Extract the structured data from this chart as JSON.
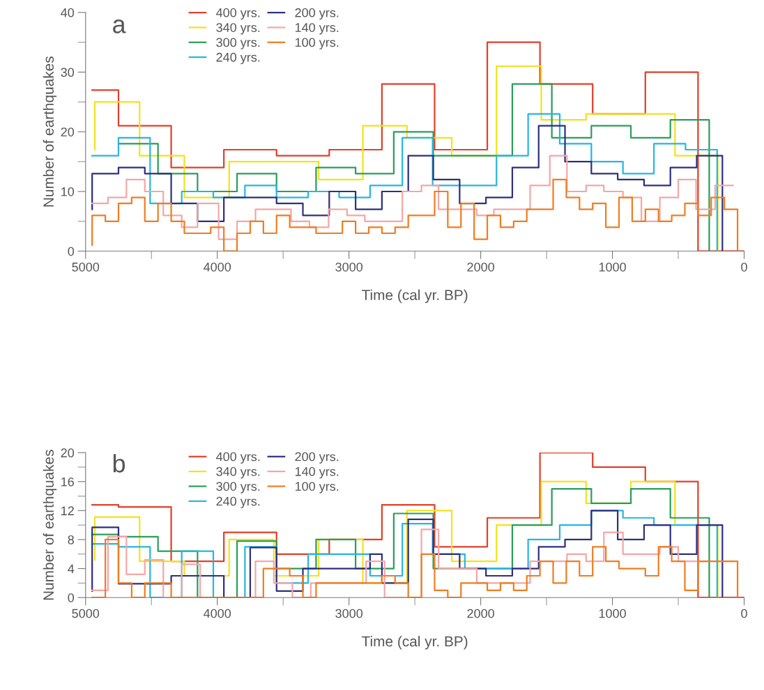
{
  "chart_data": [
    {
      "type": "step",
      "xlabel": "Time (cal yr. BP)",
      "ylabel": "Number of earthquakes",
      "annotations": [
        "a"
      ],
      "legend": "top",
      "xlim": [
        5000,
        0
      ],
      "xticks": [
        5000,
        {
          "value": 4500,
          "label": null
        },
        4000,
        {
          "value": 3500,
          "label": null
        },
        3000,
        {
          "value": 2500,
          "label": null
        },
        2000,
        {
          "value": 1500,
          "label": null
        },
        1000,
        {
          "value": 500,
          "label": null
        },
        0
      ],
      "ylim": [
        0,
        40
      ],
      "yticks": [
        0,
        {
          "value": 5,
          "label": null
        },
        10,
        {
          "value": 15,
          "label": null
        },
        20,
        {
          "value": 25,
          "label": null
        },
        30,
        {
          "value": 35,
          "label": null
        },
        40
      ],
      "series": [
        {
          "name": "400 yrs.",
          "color": "#e0402a",
          "x": [
            4950,
            4750,
            4350,
            3950,
            3550,
            3150,
            2750,
            2350,
            1950,
            1550,
            1150,
            750,
            350,
            0
          ],
          "values": [
            27,
            21,
            14,
            17,
            16,
            17,
            28,
            17,
            35,
            28,
            23,
            30,
            0,
            0
          ]
        },
        {
          "name": "340 yrs.",
          "color": "#f2e21a",
          "x": [
            4930,
            4930,
            4590,
            4250,
            3910,
            3230,
            2895,
            2560,
            2220,
            1880,
            1540,
            1200,
            525,
            200
          ],
          "values": [
            17,
            25,
            16,
            9,
            15,
            12,
            21,
            19,
            16,
            31,
            22,
            23,
            16,
            0
          ]
        },
        {
          "name": "300 yrs.",
          "color": "#2a9d5c",
          "x": [
            4750,
            4450,
            4150,
            3850,
            3550,
            3250,
            2950,
            2660,
            2360,
            1760,
            1460,
            1160,
            860,
            560,
            265
          ],
          "values": [
            18,
            13,
            10,
            13,
            10,
            14,
            13,
            20,
            16,
            28,
            19,
            21,
            19,
            22,
            0
          ]
        },
        {
          "name": "240 yrs.",
          "color": "#27b5e0",
          "x": [
            4950,
            4750,
            4510,
            4270,
            4030,
            3790,
            3550,
            3310,
            3075,
            2840,
            2595,
            2365,
            1880,
            1640,
            1400,
            1160,
            920,
            685,
            445,
            205
          ],
          "values": [
            16,
            19,
            8,
            10,
            9,
            11,
            9,
            10,
            9,
            11,
            19,
            11,
            16,
            23,
            18,
            15,
            13,
            18,
            17,
            0
          ]
        },
        {
          "name": "200 yrs.",
          "color": "#2e2f7e",
          "x": [
            4950,
            4950,
            4750,
            4550,
            4350,
            4150,
            3950,
            3550,
            3350,
            3150,
            2950,
            2750,
            2550,
            2360,
            2160,
            1960,
            1760,
            1560,
            1360,
            1160,
            960,
            760,
            560,
            360,
            165
          ],
          "values": [
            7,
            13,
            14,
            13,
            8,
            5,
            9,
            8,
            6,
            10,
            7,
            10,
            16,
            12,
            8,
            9,
            14,
            21,
            15,
            13,
            12,
            11,
            14,
            16,
            0
          ]
        },
        {
          "name": "140 yrs.",
          "color": "#f4a6a8",
          "x": [
            4950,
            4830,
            4690,
            4550,
            4410,
            4270,
            4150,
            3990,
            3850,
            3710,
            3440,
            3300,
            3155,
            3015,
            2880,
            2595,
            2450,
            2320,
            2030,
            1900,
            1625,
            1475,
            1345,
            1200,
            1065,
            920,
            780,
            640,
            500,
            365,
            220,
            85
          ],
          "values": [
            8,
            9,
            12,
            10,
            6,
            4,
            8,
            2,
            5,
            7,
            5,
            4,
            7,
            6,
            5,
            10,
            11,
            7,
            6,
            7,
            11,
            16,
            10,
            11,
            10,
            9,
            5,
            9,
            12,
            7,
            11,
            11
          ]
        },
        {
          "name": "100 yrs.",
          "color": "#ee7d22",
          "x": [
            4950,
            4950,
            4850,
            4750,
            4650,
            4550,
            4450,
            4350,
            4250,
            4150,
            4050,
            3950,
            3850,
            3750,
            3650,
            3550,
            3450,
            3350,
            3250,
            3150,
            3050,
            2950,
            2850,
            2750,
            2650,
            2550,
            2450,
            2350,
            2250,
            2150,
            2050,
            1950,
            1850,
            1750,
            1650,
            1550,
            1450,
            1350,
            1250,
            1150,
            1050,
            950,
            850,
            750,
            650,
            550,
            450,
            350,
            250,
            150,
            50
          ],
          "values": [
            1,
            6,
            5,
            8,
            9,
            5,
            8,
            5,
            3,
            3,
            4,
            0,
            3,
            5,
            3,
            6,
            4,
            4,
            3,
            3,
            5,
            3,
            4,
            3,
            4,
            6,
            6,
            10,
            4,
            8,
            2,
            6,
            4,
            5,
            7,
            7,
            12,
            9,
            7,
            8,
            4,
            9,
            5,
            7,
            5,
            6,
            8,
            6,
            9,
            7,
            0
          ]
        }
      ]
    },
    {
      "type": "step",
      "xlabel": "Time (cal yr. BP)",
      "ylabel": "Number of earthquakes",
      "annotations": [
        "b"
      ],
      "legend": "top",
      "xlim": [
        5000,
        0
      ],
      "xticks": [
        5000,
        {
          "value": 4500,
          "label": null
        },
        4000,
        {
          "value": 3500,
          "label": null
        },
        3000,
        {
          "value": 2500,
          "label": null
        },
        2000,
        {
          "value": 1500,
          "label": null
        },
        1000,
        {
          "value": 500,
          "label": null
        },
        0
      ],
      "ylim": [
        0,
        20
      ],
      "yticks": [
        0,
        {
          "value": 2,
          "label": null
        },
        4,
        {
          "value": 6,
          "label": null
        },
        8,
        {
          "value": 10,
          "label": null
        },
        12,
        {
          "value": 14,
          "label": null
        },
        16,
        {
          "value": 18,
          "label": null
        },
        20
      ],
      "series": [
        {
          "name": "400 yrs.",
          "color": "#e0402a",
          "x": [
            4950,
            4750,
            4350,
            3950,
            3550,
            3150,
            2750,
            2350,
            1950,
            1550,
            1150,
            750,
            350,
            0
          ],
          "values": [
            12.8,
            12.5,
            5,
            9,
            6,
            8,
            12.8,
            7,
            11,
            20,
            18,
            16,
            0,
            0
          ]
        },
        {
          "name": "340 yrs.",
          "color": "#f2e21a",
          "x": [
            4930,
            4930,
            4590,
            4250,
            3910,
            3570,
            3230,
            2895,
            2560,
            2220,
            1880,
            1540,
            1200,
            860,
            525,
            200
          ],
          "values": [
            5.2,
            11.1,
            5,
            3,
            8,
            3,
            8,
            2,
            12,
            5,
            10,
            16,
            13,
            16,
            10,
            0
          ]
        },
        {
          "name": "300 yrs.",
          "color": "#2a9d5c",
          "x": [
            4950,
            4750,
            4450,
            4150,
            3850,
            3550,
            3250,
            2950,
            2660,
            2360,
            1760,
            1460,
            1160,
            860,
            560,
            265
          ],
          "values": [
            8.7,
            8.4,
            6.4,
            0,
            7.8,
            4,
            8,
            4,
            11.6,
            4,
            10,
            15,
            13,
            15,
            11,
            0
          ]
        },
        {
          "name": "240 yrs.",
          "color": "#27b5e0",
          "x": [
            4950,
            4750,
            4510,
            4270,
            4030,
            3790,
            3550,
            3310,
            2840,
            2595,
            2365,
            2120,
            1640,
            1400,
            1160,
            920,
            685,
            205
          ],
          "values": [
            7.4,
            7,
            0,
            6.4,
            0,
            7,
            2,
            6,
            3,
            10.2,
            6,
            4,
            8,
            10,
            12,
            11,
            10,
            0
          ]
        },
        {
          "name": "200 yrs.",
          "color": "#2e2f7e",
          "x": [
            4950,
            4950,
            4750,
            4350,
            3950,
            3750,
            3550,
            3350,
            2840,
            2750,
            2550,
            2360,
            2160,
            1960,
            1760,
            1560,
            1360,
            1160,
            960,
            760,
            560,
            360,
            165
          ],
          "values": [
            0.9,
            9.7,
            1.9,
            3,
            0,
            6.9,
            0.9,
            4,
            6,
            2,
            10.8,
            6,
            4,
            3,
            4,
            7,
            8,
            12,
            8,
            10,
            6,
            10,
            0
          ]
        },
        {
          "name": "140 yrs.",
          "color": "#f4a6a8",
          "x": [
            4950,
            4830,
            4690,
            4550,
            4410,
            4270,
            4130,
            3710,
            3570,
            3430,
            3290,
            2870,
            2730,
            2450,
            2320,
            2030,
            1625,
            1345,
            1200,
            1065,
            920,
            640,
            500,
            85
          ],
          "values": [
            1,
            8.4,
            3.2,
            5.2,
            0,
            4.6,
            0,
            5,
            2,
            0,
            2,
            5,
            0,
            9.4,
            4,
            2,
            5,
            6,
            5,
            9,
            6,
            7,
            5,
            5
          ]
        },
        {
          "name": "100 yrs.",
          "color": "#ee7d22",
          "x": [
            4950,
            4850,
            4750,
            4650,
            4550,
            4450,
            4350,
            4250,
            4150,
            4050,
            3950,
            3850,
            3750,
            3650,
            3550,
            3450,
            3350,
            3250,
            3150,
            3050,
            2950,
            2850,
            2750,
            2650,
            2550,
            2450,
            2350,
            2250,
            2150,
            2050,
            1950,
            1850,
            1750,
            1650,
            1550,
            1450,
            1350,
            1250,
            1150,
            1050,
            950,
            850,
            750,
            650,
            550,
            450,
            350,
            250,
            150,
            50
          ],
          "values": [
            0,
            8,
            2,
            0,
            2,
            2,
            0,
            0,
            0,
            0,
            0,
            0,
            0,
            4,
            4,
            3,
            0,
            2,
            2,
            2,
            2,
            2,
            3,
            2,
            0,
            6,
            1,
            0,
            2,
            2,
            1,
            2,
            1,
            3,
            5,
            2,
            5,
            3,
            7,
            5,
            4,
            4,
            3,
            7,
            5,
            1,
            5,
            5,
            5,
            0
          ]
        }
      ]
    }
  ]
}
